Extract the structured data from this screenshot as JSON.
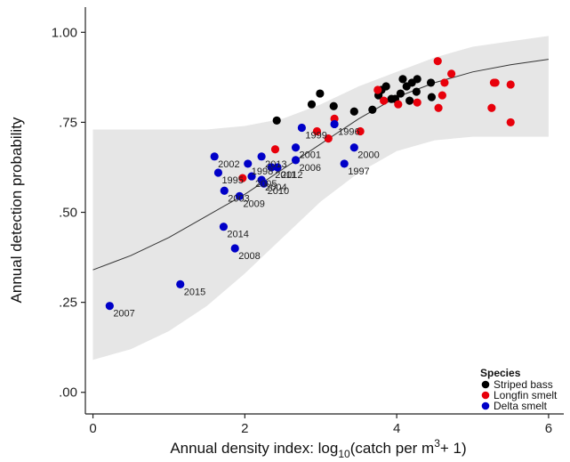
{
  "chart_data": {
    "type": "scatter",
    "xlabel_main": "Annual density index: log",
    "xlabel_sub": "10",
    "xlabel_rest": "(catch per m",
    "xlabel_sup": "3",
    "xlabel_end": "+ 1)",
    "ylabel": "Annual detection probability",
    "xlim": [
      -0.1,
      6.2
    ],
    "ylim": [
      -0.06,
      1.07
    ],
    "x_ticks": [
      0,
      2,
      4,
      6
    ],
    "x_tick_labels": [
      "0",
      "2",
      "4",
      "6"
    ],
    "y_ticks": [
      0,
      0.25,
      0.5,
      0.75,
      1.0
    ],
    "y_tick_labels": [
      ".00",
      ".25",
      ".50",
      ".75",
      "1.00"
    ],
    "grid": false,
    "legend": {
      "title": "Species",
      "position": "bottom-right",
      "entries": [
        {
          "name": "Striped bass",
          "color": "#000000"
        },
        {
          "name": "Longfin smelt",
          "color": "#e8000b"
        },
        {
          "name": "Delta smelt",
          "color": "#0000c8"
        }
      ]
    },
    "fit_curve": {
      "x": [
        0.0,
        0.5,
        1.0,
        1.5,
        2.0,
        2.5,
        3.0,
        3.5,
        4.0,
        4.5,
        5.0,
        5.5,
        6.0
      ],
      "y": [
        0.34,
        0.38,
        0.43,
        0.49,
        0.55,
        0.62,
        0.69,
        0.76,
        0.82,
        0.86,
        0.89,
        0.91,
        0.925
      ],
      "color": "#333333"
    },
    "confidence_band": {
      "x": [
        0.0,
        0.5,
        1.0,
        1.5,
        2.0,
        2.5,
        3.0,
        3.5,
        4.0,
        4.5,
        5.0,
        5.5,
        6.0
      ],
      "lower": [
        0.09,
        0.12,
        0.17,
        0.24,
        0.33,
        0.43,
        0.53,
        0.61,
        0.67,
        0.7,
        0.71,
        0.71,
        0.71
      ],
      "upper": [
        0.73,
        0.73,
        0.73,
        0.73,
        0.74,
        0.76,
        0.8,
        0.85,
        0.89,
        0.93,
        0.96,
        0.975,
        0.99
      ],
      "color": "#e6e6e6"
    },
    "series": [
      {
        "name": "Striped bass",
        "color": "#000000",
        "points": [
          {
            "x": 2.42,
            "y": 0.755
          },
          {
            "x": 2.88,
            "y": 0.8
          },
          {
            "x": 2.99,
            "y": 0.83
          },
          {
            "x": 3.17,
            "y": 0.795
          },
          {
            "x": 3.44,
            "y": 0.78
          },
          {
            "x": 3.68,
            "y": 0.785
          },
          {
            "x": 3.76,
            "y": 0.825
          },
          {
            "x": 3.8,
            "y": 0.84
          },
          {
            "x": 3.86,
            "y": 0.85
          },
          {
            "x": 3.93,
            "y": 0.815
          },
          {
            "x": 3.98,
            "y": 0.815
          },
          {
            "x": 4.05,
            "y": 0.83
          },
          {
            "x": 4.08,
            "y": 0.87
          },
          {
            "x": 4.13,
            "y": 0.85
          },
          {
            "x": 4.17,
            "y": 0.81
          },
          {
            "x": 4.2,
            "y": 0.86
          },
          {
            "x": 4.26,
            "y": 0.835
          },
          {
            "x": 4.27,
            "y": 0.87
          },
          {
            "x": 4.45,
            "y": 0.86
          },
          {
            "x": 4.46,
            "y": 0.82
          }
        ]
      },
      {
        "name": "Longfin smelt",
        "color": "#e8000b",
        "points": [
          {
            "x": 1.97,
            "y": 0.595
          },
          {
            "x": 2.4,
            "y": 0.675
          },
          {
            "x": 2.95,
            "y": 0.725
          },
          {
            "x": 3.1,
            "y": 0.705
          },
          {
            "x": 3.18,
            "y": 0.76
          },
          {
            "x": 3.52,
            "y": 0.725
          },
          {
            "x": 3.75,
            "y": 0.84
          },
          {
            "x": 3.83,
            "y": 0.81
          },
          {
            "x": 4.02,
            "y": 0.8
          },
          {
            "x": 4.27,
            "y": 0.805
          },
          {
            "x": 4.54,
            "y": 0.92
          },
          {
            "x": 4.55,
            "y": 0.79
          },
          {
            "x": 4.6,
            "y": 0.825
          },
          {
            "x": 4.63,
            "y": 0.86
          },
          {
            "x": 4.72,
            "y": 0.885
          },
          {
            "x": 5.25,
            "y": 0.79
          },
          {
            "x": 5.28,
            "y": 0.86
          },
          {
            "x": 5.3,
            "y": 0.86
          },
          {
            "x": 5.5,
            "y": 0.855
          },
          {
            "x": 5.5,
            "y": 0.75
          }
        ]
      },
      {
        "name": "Delta smelt",
        "color": "#0000c8",
        "points": [
          {
            "x": 0.22,
            "y": 0.24,
            "label": "2007"
          },
          {
            "x": 1.15,
            "y": 0.3,
            "label": "2015"
          },
          {
            "x": 1.6,
            "y": 0.655,
            "label": "2002"
          },
          {
            "x": 1.65,
            "y": 0.61,
            "label": "1995"
          },
          {
            "x": 1.72,
            "y": 0.46,
            "label": "2014"
          },
          {
            "x": 1.73,
            "y": 0.56,
            "label": "2003"
          },
          {
            "x": 1.87,
            "y": 0.4,
            "label": "2008"
          },
          {
            "x": 1.93,
            "y": 0.545,
            "label": "2009"
          },
          {
            "x": 2.04,
            "y": 0.635,
            "label": "1998"
          },
          {
            "x": 2.09,
            "y": 0.6,
            "label": "2005"
          },
          {
            "x": 2.22,
            "y": 0.59,
            "label": "2004"
          },
          {
            "x": 2.22,
            "y": 0.655,
            "label": "2013"
          },
          {
            "x": 2.25,
            "y": 0.58,
            "label": "2010"
          },
          {
            "x": 2.35,
            "y": 0.625,
            "label": "2011"
          },
          {
            "x": 2.43,
            "y": 0.625,
            "label": "2012"
          },
          {
            "x": 2.67,
            "y": 0.68,
            "label": "2001"
          },
          {
            "x": 2.67,
            "y": 0.645,
            "label": "2006"
          },
          {
            "x": 2.75,
            "y": 0.735,
            "label": "1999"
          },
          {
            "x": 3.18,
            "y": 0.745,
            "label": "1996"
          },
          {
            "x": 3.31,
            "y": 0.635,
            "label": "1997"
          },
          {
            "x": 3.44,
            "y": 0.68,
            "label": "2000"
          }
        ]
      }
    ]
  }
}
